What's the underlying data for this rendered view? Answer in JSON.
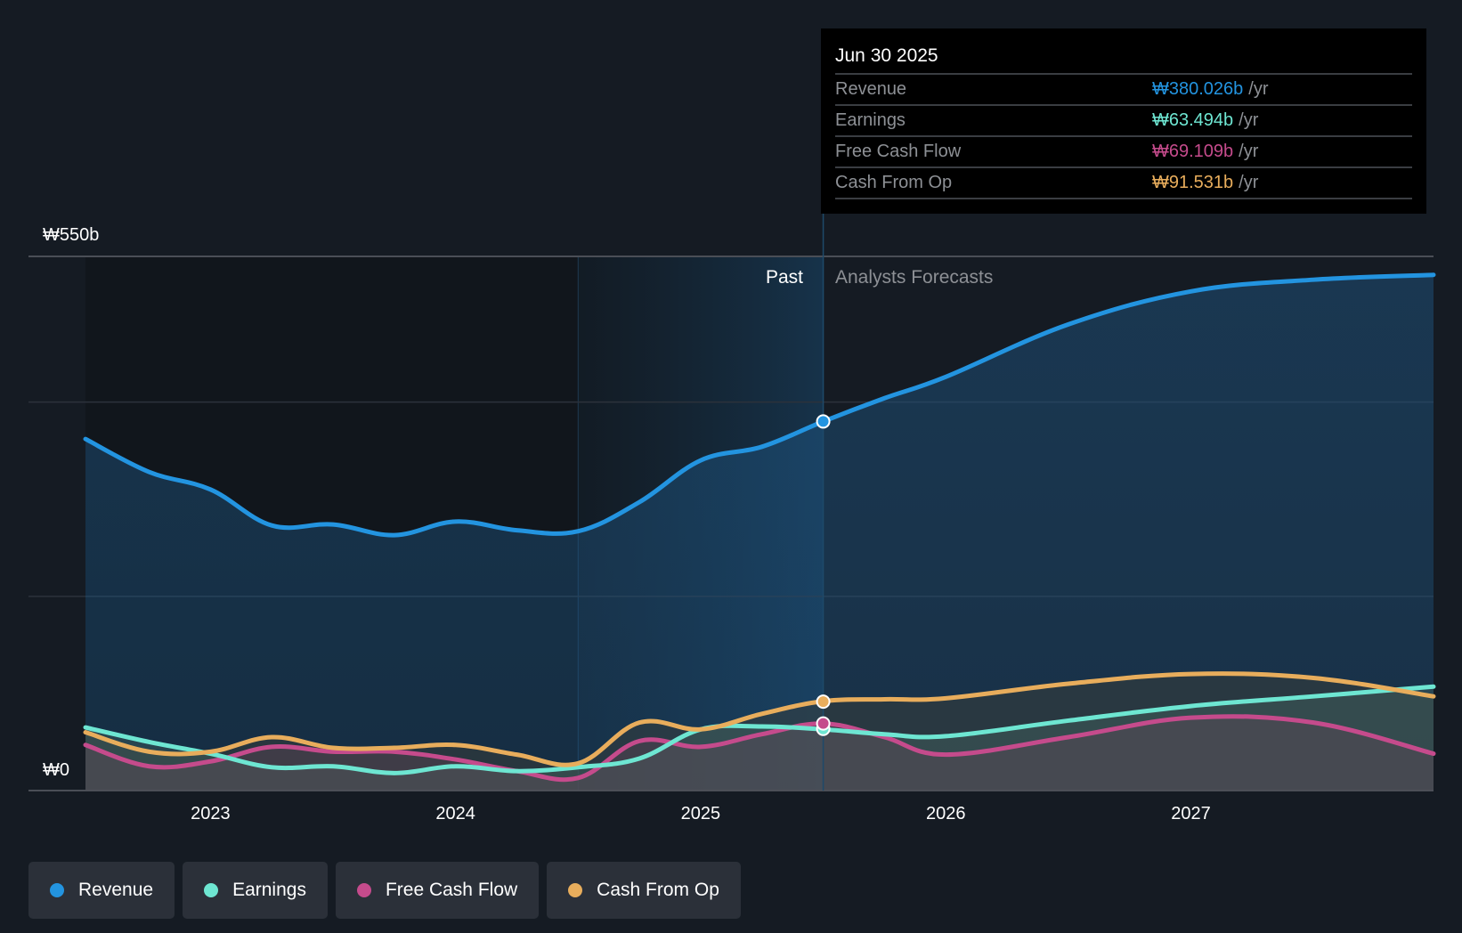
{
  "tooltip": {
    "date": "Jun 30 2025",
    "rows": [
      {
        "label": "Revenue",
        "value": "₩380.026b",
        "unit": "/yr",
        "color": "#2394e0"
      },
      {
        "label": "Earnings",
        "value": "₩63.494b",
        "unit": "/yr",
        "color": "#6ee6d2"
      },
      {
        "label": "Free Cash Flow",
        "value": "₩69.109b",
        "unit": "/yr",
        "color": "#c54b8c"
      },
      {
        "label": "Cash From Op",
        "value": "₩91.531b",
        "unit": "/yr",
        "color": "#e8ad5c"
      }
    ]
  },
  "legend": [
    {
      "label": "Revenue",
      "color": "#2394e0"
    },
    {
      "label": "Earnings",
      "color": "#6ee6d2"
    },
    {
      "label": "Free Cash Flow",
      "color": "#c54b8c"
    },
    {
      "label": "Cash From Op",
      "color": "#e8ad5c"
    }
  ],
  "chart_data": {
    "type": "area",
    "title": "",
    "xlabel": "",
    "ylabel": "",
    "y_top_label": "₩550b",
    "y_bottom_label": "₩0",
    "ylim": [
      0,
      550
    ],
    "xlim": [
      2022.49,
      2027.99
    ],
    "unit": "KRW billions",
    "x_ticks": [
      "2023",
      "2024",
      "2025",
      "2026",
      "2027"
    ],
    "x_tick_values": [
      2023,
      2024,
      2025,
      2026,
      2027
    ],
    "grid": true,
    "gridlines": [
      0,
      200,
      400,
      550
    ],
    "past_label": "Past",
    "forecast_label": "Analysts Forecasts",
    "divider_x": 2025.5,
    "highlight_start": 2024.5,
    "legend_position": "bottom-left",
    "series": [
      {
        "name": "Revenue",
        "color": "#2394e0",
        "x": [
          2022.49,
          2022.75,
          2023.0,
          2023.25,
          2023.5,
          2023.75,
          2024.0,
          2024.25,
          2024.5,
          2024.75,
          2025.0,
          2025.25,
          2025.5,
          2025.75,
          2026.0,
          2026.5,
          2027.0,
          2027.5,
          2027.99
        ],
        "values": [
          362,
          328,
          310,
          273,
          274,
          263,
          277,
          268,
          267,
          297,
          340,
          354,
          380,
          404,
          426,
          480,
          514,
          526,
          531
        ]
      },
      {
        "name": "Earnings",
        "color": "#6ee6d2",
        "x": [
          2022.49,
          2022.75,
          2023.0,
          2023.25,
          2023.5,
          2023.75,
          2024.0,
          2024.25,
          2024.5,
          2024.75,
          2025.0,
          2025.25,
          2025.5,
          2025.75,
          2026.0,
          2026.5,
          2027.0,
          2027.5,
          2027.99
        ],
        "values": [
          65,
          50,
          38,
          24,
          25,
          18,
          25,
          20,
          24,
          33,
          63,
          66,
          63,
          58,
          56,
          72,
          87,
          97,
          107
        ]
      },
      {
        "name": "Free Cash Flow",
        "color": "#c54b8c",
        "x": [
          2022.49,
          2022.75,
          2023.0,
          2023.25,
          2023.5,
          2023.75,
          2024.0,
          2024.25,
          2024.5,
          2024.75,
          2025.0,
          2025.25,
          2025.5,
          2025.75,
          2026.0,
          2026.5,
          2027.0,
          2027.5,
          2027.99
        ],
        "values": [
          47,
          25,
          30,
          45,
          40,
          40,
          32,
          20,
          13,
          51,
          45,
          58,
          69,
          55,
          37,
          55,
          75,
          70,
          38
        ]
      },
      {
        "name": "Cash From Op",
        "color": "#e8ad5c",
        "x": [
          2022.49,
          2022.75,
          2023.0,
          2023.25,
          2023.5,
          2023.75,
          2024.0,
          2024.25,
          2024.5,
          2024.75,
          2025.0,
          2025.25,
          2025.5,
          2025.75,
          2026.0,
          2026.5,
          2027.0,
          2027.5,
          2027.99
        ],
        "values": [
          60,
          40,
          40,
          55,
          44,
          44,
          47,
          37,
          28,
          70,
          63,
          79,
          92,
          94,
          95,
          110,
          120,
          116,
          97
        ]
      }
    ],
    "markers": [
      {
        "series": "Revenue",
        "x": 2025.5,
        "value": 380.026
      },
      {
        "series": "Earnings",
        "x": 2025.5,
        "value": 63.494
      },
      {
        "series": "Free Cash Flow",
        "x": 2025.5,
        "value": 69.109
      },
      {
        "series": "Cash From Op",
        "x": 2025.5,
        "value": 91.531
      }
    ]
  }
}
